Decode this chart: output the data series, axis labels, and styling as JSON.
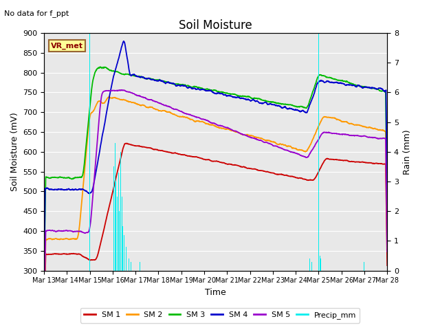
{
  "title": "Soil Moisture",
  "xlabel": "Time",
  "ylabel_left": "Soil Moisture (mV)",
  "ylabel_right": "Rain (mm)",
  "note": "No data for f_ppt",
  "legend_label": "VR_met",
  "ylim_left": [
    300,
    900
  ],
  "ylim_right": [
    0.0,
    8.0
  ],
  "yticks_left": [
    300,
    350,
    400,
    450,
    500,
    550,
    600,
    650,
    700,
    750,
    800,
    850,
    900
  ],
  "yticks_right": [
    0.0,
    1.0,
    2.0,
    3.0,
    4.0,
    5.0,
    6.0,
    7.0,
    8.0
  ],
  "colors": {
    "SM1": "#cc0000",
    "SM2": "#ff9900",
    "SM3": "#00bb00",
    "SM4": "#0000cc",
    "SM5": "#9900cc",
    "Precip": "#00eeee",
    "background": "#e8e8e8",
    "vr_met_bg": "#ffff99",
    "vr_met_border": "#996633"
  },
  "legend_entries": [
    "SM 1",
    "SM 2",
    "SM 3",
    "SM 4",
    "SM 5",
    "Precip_mm"
  ],
  "date_labels": [
    "Mar 13",
    "Mar 14",
    "Mar 15",
    "Mar 16",
    "Mar 17",
    "Mar 18",
    "Mar 19",
    "Mar 20",
    "Mar 21",
    "Mar 22",
    "Mar 23",
    "Mar 24",
    "Mar 25",
    "Mar 26",
    "Mar 27",
    "Mar 28"
  ]
}
